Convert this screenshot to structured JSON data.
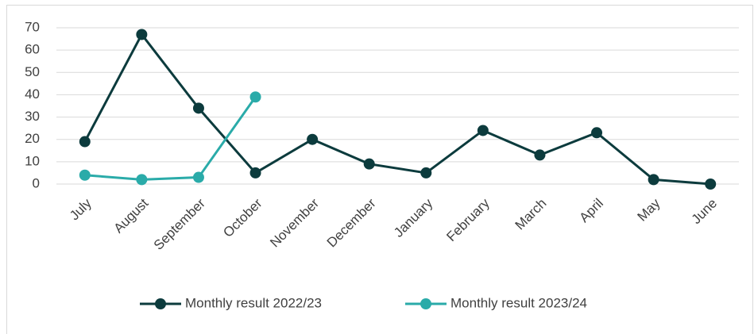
{
  "chart_data": {
    "type": "line",
    "categories": [
      "July",
      "August",
      "September",
      "October",
      "November",
      "December",
      "January",
      "February",
      "March",
      "April",
      "May",
      "June"
    ],
    "series": [
      {
        "name": "Monthly result 2022/23",
        "color": "#0c3b3d",
        "values": [
          19,
          67,
          34,
          5,
          20,
          9,
          5,
          24,
          13,
          23,
          2,
          0
        ]
      },
      {
        "name": "Monthly result 2023/24",
        "color": "#2aaba9",
        "values": [
          4,
          2,
          3,
          39,
          null,
          null,
          null,
          null,
          null,
          null,
          null,
          null
        ]
      }
    ],
    "ylim": [
      0,
      70
    ],
    "yticks": [
      0,
      10,
      20,
      30,
      40,
      50,
      60,
      70
    ],
    "grid": true,
    "legend": "bottom"
  }
}
